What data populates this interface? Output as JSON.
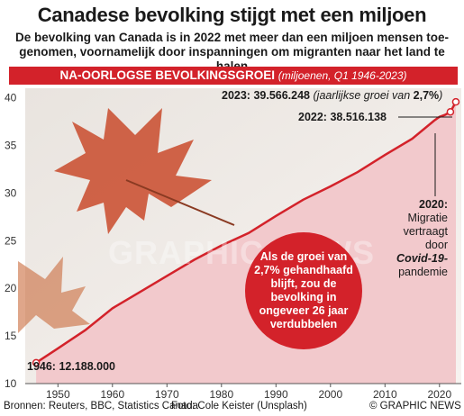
{
  "title": "Canadese bevolking stijgt met een miljoen",
  "subtitle_line1": "De bevolking van Canada is in 2022 met meer dan een miljoen mensen toe-",
  "subtitle_line2": "genomen, voornamelijk door inspanningen om migranten naar het land te halen",
  "banner": {
    "heading": "NA-OORLOGSE BEVOLKINGSGROEI",
    "unit": "(miljoenen, Q1 1946-2023)"
  },
  "annotations": {
    "y2023": "2023: 39.566.248",
    "y2023_rate_prefix": "(jaarlijkse groei van ",
    "y2023_rate_value": "2,7%",
    "y2023_rate_suffix": ")",
    "y2022": "2022: 38.516.138",
    "y1946": "1946: 12.188.000",
    "y2020_year": "2020:",
    "y2020_line1": "Migratie",
    "y2020_line2": "vertraagt",
    "y2020_line3": "door",
    "y2020_covid": "Covid-19-",
    "y2020_line4": "pandemie",
    "bubble": "Als de groei van 2,7% gehandhaafd blijft, zou de bevolking in ongeveer 26 jaar verdubbelen"
  },
  "watermark": "GRAPHIC NEWS",
  "footer": {
    "sources": "Bronnen: Reuters, BBC, Statistics Canada",
    "photo": "Foto:  Cole Keister (Unsplash)",
    "copyright": "© GRAPHIC NEWS"
  },
  "colors": {
    "accent": "#d3222a",
    "area": "#f2c9cc",
    "line": "#d3222a"
  },
  "chart_data": {
    "type": "area",
    "x": [
      1946,
      1950,
      1955,
      1960,
      1965,
      1970,
      1975,
      1980,
      1985,
      1990,
      1995,
      2000,
      2005,
      2010,
      2015,
      2019,
      2020,
      2021,
      2022,
      2023
    ],
    "y": [
      12.19,
      13.7,
      15.6,
      17.9,
      19.6,
      21.3,
      23.0,
      24.5,
      25.8,
      27.6,
      29.3,
      30.7,
      32.2,
      34.0,
      35.7,
      37.6,
      38.0,
      38.2,
      38.52,
      39.57
    ],
    "xlim": [
      1944,
      2024
    ],
    "ylim": [
      10,
      41
    ],
    "xticks": [
      1950,
      1960,
      1970,
      1980,
      1990,
      2000,
      2010,
      2020
    ],
    "yticks": [
      10,
      15,
      20,
      25,
      30,
      35,
      40
    ],
    "xtick_labels": [
      "1950",
      "1960",
      "1970",
      "1980",
      "1990",
      "2000",
      "2010",
      "2020"
    ],
    "ytick_labels": [
      "10",
      "15",
      "20",
      "25",
      "30",
      "35",
      "40"
    ],
    "grid": false
  }
}
